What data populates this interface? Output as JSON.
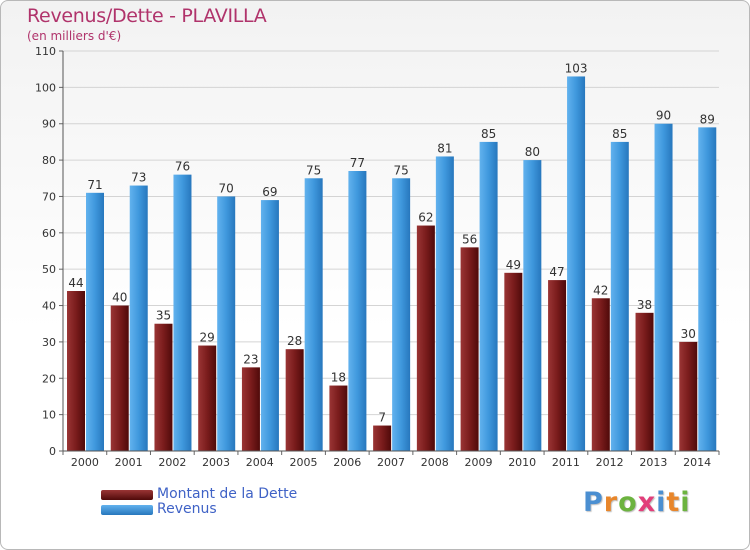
{
  "header": {
    "title": "Revenus/Dette - PLAVILLA",
    "subtitle": "(en milliers d'€)"
  },
  "legend": {
    "items": [
      {
        "label": "Montant de la Dette",
        "color": "#7a1c1c"
      },
      {
        "label": "Revenus",
        "color": "#3f98dd"
      }
    ]
  },
  "logo": {
    "letters": [
      "P",
      "r",
      "o",
      "x",
      "i",
      "t",
      "i"
    ],
    "colors": [
      "#4b8fd1",
      "#e8862b",
      "#6cb33f",
      "#e23e7a",
      "#4b8fd1",
      "#e8862b",
      "#6cb33f"
    ]
  },
  "chart_data": {
    "type": "bar",
    "categories": [
      "2000",
      "2001",
      "2002",
      "2003",
      "2004",
      "2005",
      "2006",
      "2007",
      "2008",
      "2009",
      "2010",
      "2011",
      "2012",
      "2013",
      "2014"
    ],
    "series": [
      {
        "name": "Montant de la Dette",
        "color": "#7a1c1c",
        "values": [
          44,
          40,
          35,
          29,
          23,
          28,
          18,
          7,
          62,
          56,
          49,
          47,
          42,
          38,
          30
        ]
      },
      {
        "name": "Revenus",
        "color": "#3f98dd",
        "values": [
          71,
          73,
          76,
          70,
          69,
          75,
          77,
          75,
          81,
          85,
          80,
          103,
          85,
          90,
          89
        ]
      }
    ],
    "yticks": [
      "0",
      "10",
      "20",
      "30",
      "40",
      "50",
      "60",
      "70",
      "80",
      "90",
      "100",
      "110"
    ],
    "ylim": [
      0,
      110
    ],
    "grid": true,
    "legend_position": "bottom-left",
    "data_labels": true
  }
}
